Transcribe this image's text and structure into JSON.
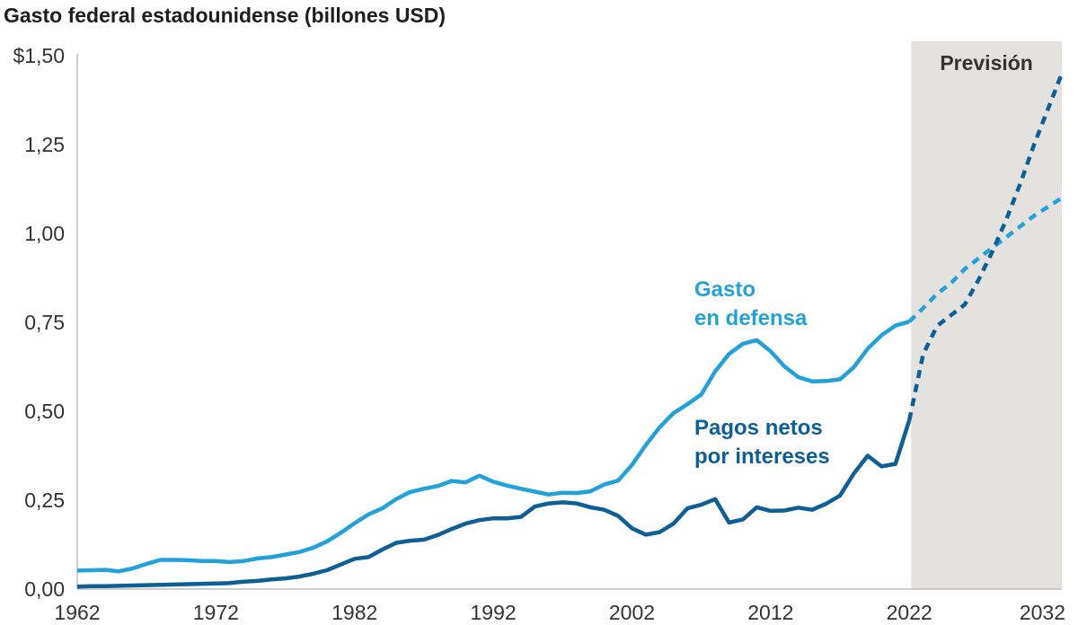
{
  "chart_data": {
    "type": "line",
    "title": "Gasto federal estadounidense (billones USD)",
    "xlim": [
      1962,
      2033
    ],
    "ylim": [
      0,
      1.5
    ],
    "x_ticks": [
      1962,
      1972,
      1982,
      1992,
      2002,
      2012,
      2022,
      2032
    ],
    "y_ticks": [
      {
        "value": 0,
        "label": "0,00"
      },
      {
        "value": 0.25,
        "label": "0,25"
      },
      {
        "value": 0.5,
        "label": "0,50"
      },
      {
        "value": 0.75,
        "label": "0,75"
      },
      {
        "value": 1.0,
        "label": "1,00"
      },
      {
        "value": 1.25,
        "label": "1,25"
      },
      {
        "value": 1.5,
        "label": "$1,50"
      }
    ],
    "forecast": {
      "label": "Previsión",
      "start": 2022,
      "end": 2033,
      "color": "#e3e2df"
    },
    "series": [
      {
        "name": "Gasto en defensa",
        "label_lines": [
          "Gasto",
          "en defensa"
        ],
        "color": "#23a2d9",
        "actual": {
          "x": [
            1962,
            1963,
            1964,
            1965,
            1966,
            1967,
            1968,
            1969,
            1970,
            1971,
            1972,
            1973,
            1974,
            1975,
            1976,
            1977,
            1978,
            1979,
            1980,
            1981,
            1982,
            1983,
            1984,
            1985,
            1986,
            1987,
            1988,
            1989,
            1990,
            1991,
            1992,
            1993,
            1994,
            1995,
            1996,
            1997,
            1998,
            1999,
            2000,
            2001,
            2002,
            2003,
            2004,
            2005,
            2006,
            2007,
            2008,
            2009,
            2010,
            2011,
            2012,
            2013,
            2014,
            2015,
            2016,
            2017,
            2018,
            2019,
            2020,
            2021,
            2022
          ],
          "y": [
            0.052,
            0.053,
            0.054,
            0.05,
            0.058,
            0.071,
            0.082,
            0.082,
            0.081,
            0.079,
            0.079,
            0.076,
            0.079,
            0.086,
            0.09,
            0.097,
            0.104,
            0.116,
            0.134,
            0.158,
            0.185,
            0.21,
            0.227,
            0.253,
            0.273,
            0.282,
            0.29,
            0.304,
            0.3,
            0.319,
            0.302,
            0.291,
            0.282,
            0.274,
            0.266,
            0.271,
            0.27,
            0.275,
            0.294,
            0.305,
            0.349,
            0.405,
            0.455,
            0.495,
            0.52,
            0.547,
            0.612,
            0.661,
            0.69,
            0.7,
            0.669,
            0.626,
            0.596,
            0.584,
            0.585,
            0.59,
            0.624,
            0.676,
            0.714,
            0.741,
            0.752
          ]
        },
        "projected": {
          "x": [
            2022,
            2023,
            2024,
            2025,
            2026,
            2027,
            2028,
            2029,
            2030,
            2031,
            2032,
            2033
          ],
          "y": [
            0.752,
            0.79,
            0.83,
            0.86,
            0.9,
            0.93,
            0.96,
            0.99,
            1.02,
            1.05,
            1.075,
            1.1
          ]
        }
      },
      {
        "name": "Pagos netos por intereses",
        "label_lines": [
          "Pagos netos",
          "por intereses"
        ],
        "color": "#0d5f96",
        "actual": {
          "x": [
            1962,
            1963,
            1964,
            1965,
            1966,
            1967,
            1968,
            1969,
            1970,
            1971,
            1972,
            1973,
            1974,
            1975,
            1976,
            1977,
            1978,
            1979,
            1980,
            1981,
            1982,
            1983,
            1984,
            1985,
            1986,
            1987,
            1988,
            1989,
            1990,
            1991,
            1992,
            1993,
            1994,
            1995,
            1996,
            1997,
            1998,
            1999,
            2000,
            2001,
            2002,
            2003,
            2004,
            2005,
            2006,
            2007,
            2008,
            2009,
            2010,
            2011,
            2012,
            2013,
            2014,
            2015,
            2016,
            2017,
            2018,
            2019,
            2020,
            2021,
            2022
          ],
          "y": [
            0.007,
            0.008,
            0.008,
            0.009,
            0.01,
            0.011,
            0.012,
            0.013,
            0.014,
            0.015,
            0.016,
            0.017,
            0.021,
            0.023,
            0.027,
            0.03,
            0.035,
            0.043,
            0.053,
            0.069,
            0.085,
            0.09,
            0.111,
            0.13,
            0.136,
            0.139,
            0.152,
            0.169,
            0.184,
            0.194,
            0.199,
            0.199,
            0.203,
            0.232,
            0.241,
            0.244,
            0.241,
            0.23,
            0.223,
            0.206,
            0.171,
            0.153,
            0.16,
            0.184,
            0.227,
            0.237,
            0.253,
            0.187,
            0.196,
            0.23,
            0.22,
            0.221,
            0.229,
            0.223,
            0.24,
            0.263,
            0.325,
            0.375,
            0.345,
            0.352,
            0.475
          ]
        },
        "projected": {
          "x": [
            2022,
            2023,
            2024,
            2025,
            2026,
            2027,
            2028,
            2029,
            2030,
            2031,
            2032,
            2033
          ],
          "y": [
            0.475,
            0.66,
            0.74,
            0.77,
            0.8,
            0.87,
            0.95,
            1.04,
            1.14,
            1.25,
            1.35,
            1.45
          ]
        }
      }
    ]
  }
}
